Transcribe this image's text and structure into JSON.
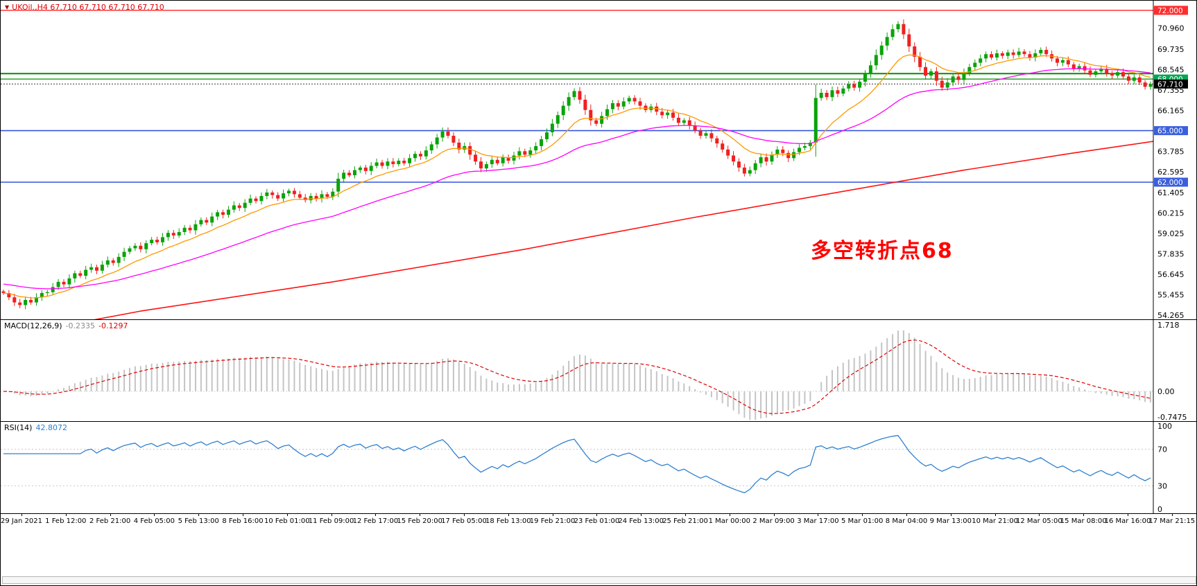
{
  "chart_data": {
    "type": "candlestick",
    "title": "UKOil.,H4 67.710 67.710 67.710 67.710",
    "collapse_icon": "▼",
    "annotation": {
      "text": "多空转折点68",
      "color": "#ff0000"
    },
    "up_color": "#0aa30a",
    "down_color": "#f02020",
    "x_labels": [
      "29 Jan 2021",
      "1 Feb 12:00",
      "2 Feb 21:00",
      "4 Feb 05:00",
      "5 Feb 13:00",
      "8 Feb 16:00",
      "10 Feb 01:00",
      "11 Feb 09:00",
      "12 Feb 17:00",
      "15 Feb 20:00",
      "17 Feb 05:00",
      "18 Feb 13:00",
      "19 Feb 21:00",
      "23 Feb 01:00",
      "24 Feb 13:00",
      "25 Feb 21:00",
      "1 Mar 00:00",
      "2 Mar 09:00",
      "3 Mar 17:00",
      "5 Mar 01:00",
      "8 Mar 04:00",
      "9 Mar 13:00",
      "10 Mar 21:00",
      "12 Mar 05:00",
      "15 Mar 08:00",
      "16 Mar 16:00",
      "17 Mar 21:15"
    ],
    "closes": [
      55.55,
      55.3,
      55.0,
      54.85,
      55.15,
      55.0,
      55.3,
      55.55,
      55.6,
      55.9,
      56.2,
      56.05,
      56.4,
      56.7,
      56.55,
      56.9,
      57.05,
      56.85,
      57.2,
      57.45,
      57.3,
      57.65,
      57.95,
      58.15,
      58.3,
      58.1,
      58.45,
      58.65,
      58.5,
      58.8,
      59.05,
      58.9,
      59.1,
      59.35,
      59.2,
      59.55,
      59.8,
      59.65,
      60.0,
      60.25,
      60.1,
      60.4,
      60.65,
      60.5,
      60.8,
      61.05,
      60.9,
      61.2,
      61.4,
      61.25,
      61.05,
      61.35,
      61.5,
      61.3,
      61.1,
      60.95,
      61.2,
      61.05,
      61.3,
      61.15,
      61.45,
      62.2,
      62.55,
      62.4,
      62.7,
      62.85,
      62.65,
      62.95,
      63.15,
      62.95,
      63.2,
      63.05,
      63.25,
      63.1,
      63.4,
      63.65,
      63.5,
      63.85,
      64.2,
      64.6,
      64.95,
      64.7,
      64.3,
      63.9,
      64.1,
      63.6,
      63.2,
      62.8,
      63.05,
      63.3,
      63.1,
      63.45,
      63.25,
      63.55,
      63.8,
      63.6,
      63.85,
      64.1,
      64.5,
      64.9,
      65.4,
      65.9,
      66.45,
      66.95,
      67.3,
      66.8,
      66.2,
      65.6,
      65.4,
      65.85,
      66.25,
      66.6,
      66.4,
      66.7,
      66.9,
      66.7,
      66.45,
      66.2,
      66.4,
      66.1,
      65.9,
      66.05,
      65.75,
      65.45,
      65.6,
      65.3,
      65.0,
      64.7,
      64.85,
      64.55,
      64.25,
      63.9,
      63.55,
      63.2,
      62.85,
      62.5,
      62.7,
      63.1,
      63.45,
      63.2,
      63.6,
      63.9,
      63.7,
      63.4,
      63.75,
      64.0,
      64.1,
      64.3,
      66.9,
      67.2,
      66.95,
      67.35,
      67.15,
      67.45,
      67.7,
      67.5,
      67.85,
      68.3,
      68.8,
      69.4,
      69.95,
      70.45,
      70.9,
      71.2,
      70.6,
      69.9,
      69.3,
      68.7,
      68.2,
      68.45,
      67.9,
      67.5,
      67.8,
      68.15,
      67.95,
      68.35,
      68.7,
      68.95,
      69.2,
      69.45,
      69.25,
      69.5,
      69.35,
      69.55,
      69.4,
      69.6,
      69.45,
      69.25,
      69.5,
      69.7,
      69.45,
      69.2,
      68.95,
      69.1,
      68.85,
      68.6,
      68.75,
      68.5,
      68.25,
      68.45,
      68.6,
      68.35,
      68.2,
      68.4,
      68.15,
      67.9,
      68.1,
      67.8,
      67.55,
      67.71
    ],
    "y_axis": {
      "price_top": 72.56,
      "price_bottom": 54.02,
      "ticks": [
        "70.960",
        "69.735",
        "68.545",
        "67.355",
        "66.165",
        "63.785",
        "62.595",
        "61.405",
        "60.215",
        "59.025",
        "57.835",
        "56.645",
        "55.455",
        "54.265"
      ]
    },
    "levels": [
      {
        "price": 72.0,
        "label": "72.000",
        "color": "#ff2020",
        "badge": "#ff2d2d",
        "width": 1.4
      },
      {
        "price": 68.32,
        "label": null,
        "color": "#008f00",
        "badge": null,
        "width": 2
      },
      {
        "price": 68.0,
        "label": "68.000",
        "color": "#008f00",
        "badge": "#00a651",
        "width": 1.2
      },
      {
        "price": 65.0,
        "label": "65.000",
        "color": "#3355dd",
        "badge": "#3a5fdd",
        "width": 1.6
      },
      {
        "price": 62.0,
        "label": "62.000",
        "color": "#3355dd",
        "badge": "#3a5fdd",
        "width": 1.6
      }
    ],
    "current_price": {
      "value": 67.71,
      "label": "67.710",
      "badge": "#000000"
    },
    "ma": {
      "fast_period": 12,
      "fast_color": "#ff9800",
      "mid_period": 40,
      "mid_seed_offset": 0.55,
      "mid_color": "#ff00ff",
      "slow_color": "#ff1010",
      "slow_anchors": [
        [
          0,
          53.0
        ],
        [
          25,
          54.5
        ],
        [
          60,
          56.2
        ],
        [
          95,
          58.1
        ],
        [
          125,
          59.9
        ],
        [
          150,
          61.3
        ],
        [
          175,
          62.7
        ],
        [
          195,
          63.7
        ],
        [
          210,
          64.4
        ]
      ]
    },
    "macd": {
      "label": "MACD(12,26,9)",
      "value1": "-0.2335",
      "value2": "-0.1297",
      "fast": 12,
      "slow": 26,
      "signal": 9,
      "bar_color": "#c4c4c4",
      "signal_color": "#e00000",
      "axis": [
        {
          "v": 1.718,
          "t": "1.718"
        },
        {
          "v": 0,
          "t": "0.00"
        },
        {
          "v": -0.7475,
          "t": "-0.7475"
        }
      ]
    },
    "rsi": {
      "label": "RSI(14)",
      "value": "42.8072",
      "period": 14,
      "color": "#2e7fd1",
      "levels": [
        70,
        30
      ],
      "axis": [
        {
          "v": 100,
          "t": "100"
        },
        {
          "v": 70,
          "t": "70"
        },
        {
          "v": 30,
          "t": "30"
        },
        {
          "v": 0,
          "t": "0"
        }
      ]
    }
  }
}
